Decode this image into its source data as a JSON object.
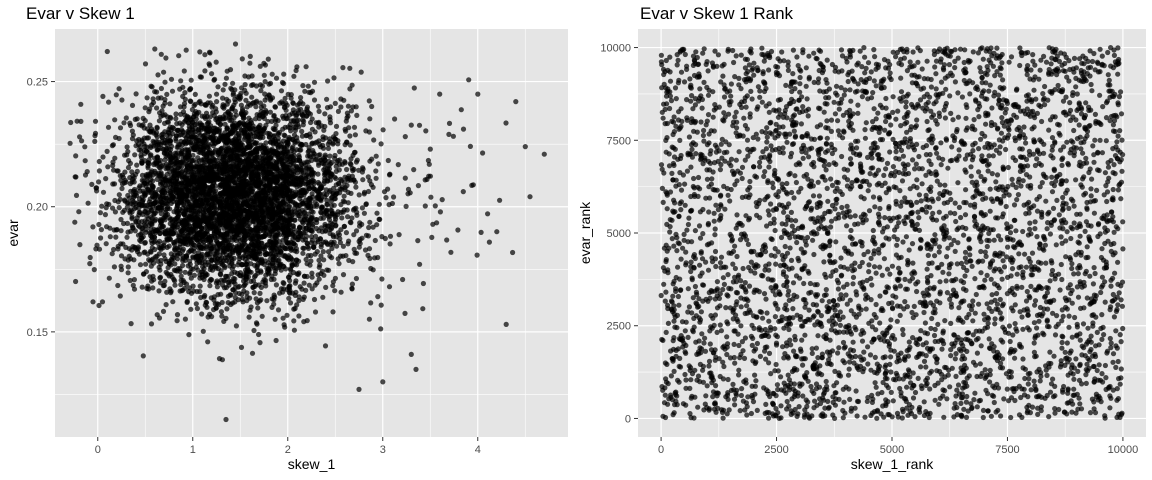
{
  "chart_data": [
    {
      "type": "scatter",
      "title": "Evar v Skew 1",
      "xlabel": "skew_1",
      "ylabel": "evar",
      "xlim": [
        -0.45,
        4.95
      ],
      "ylim": [
        0.108,
        0.271
      ],
      "x_ticks": [
        0,
        1,
        2,
        3,
        4
      ],
      "y_ticks": [
        0.15,
        0.2,
        0.25
      ],
      "x_tick_labels": [
        "0",
        "1",
        "2",
        "3",
        "4"
      ],
      "y_tick_labels": [
        "0.15",
        "0.20",
        "0.25"
      ],
      "n_points_approx": 10000,
      "distribution": {
        "x_center": 1.4,
        "x_sd": 0.55,
        "y_center": 0.205,
        "y_sd": 0.02
      },
      "notable_points": [
        {
          "x": -0.2,
          "y": 0.198
        },
        {
          "x": -0.05,
          "y": 0.162
        },
        {
          "x": 0.05,
          "y": 0.162
        },
        {
          "x": 0.1,
          "y": 0.262
        },
        {
          "x": 0.6,
          "y": 0.263
        },
        {
          "x": 1.45,
          "y": 0.265
        },
        {
          "x": 1.35,
          "y": 0.115
        },
        {
          "x": 2.75,
          "y": 0.127
        },
        {
          "x": 4.5,
          "y": 0.224
        },
        {
          "x": 4.7,
          "y": 0.221
        },
        {
          "x": 4.4,
          "y": 0.242
        },
        {
          "x": 4.0,
          "y": 0.245
        },
        {
          "x": 4.55,
          "y": 0.204
        },
        {
          "x": 4.2,
          "y": 0.19
        },
        {
          "x": 3.35,
          "y": 0.135
        },
        {
          "x": 3.3,
          "y": 0.141
        },
        {
          "x": 4.3,
          "y": 0.153
        },
        {
          "x": 3.0,
          "y": 0.13
        },
        {
          "x": 3.6,
          "y": 0.245
        },
        {
          "x": 3.5,
          "y": 0.223
        },
        {
          "x": 3.85,
          "y": 0.231
        }
      ],
      "point_color": "#000000",
      "point_alpha": 0.7,
      "panel_background": "#e5e5e5",
      "grid_color": "#ffffff",
      "grid": true
    },
    {
      "type": "scatter",
      "title": "Evar v Skew 1 Rank",
      "xlabel": "skew_1_rank",
      "ylabel": "evar_rank",
      "xlim": [
        -500,
        10500
      ],
      "ylim": [
        -500,
        10500
      ],
      "x_ticks": [
        0,
        2500,
        5000,
        7500,
        10000
      ],
      "y_ticks": [
        0,
        2500,
        5000,
        7500,
        10000
      ],
      "x_tick_labels": [
        "0",
        "2500",
        "5000",
        "7500",
        "10000"
      ],
      "y_tick_labels": [
        "0",
        "2500",
        "5000",
        "7500",
        "10000"
      ],
      "n_points_approx": 10000,
      "distribution": "uniform over [0, 10000] x [0, 10000]",
      "point_color": "#000000",
      "point_alpha": 0.7,
      "panel_background": "#e5e5e5",
      "grid_color": "#ffffff",
      "grid": true
    }
  ]
}
